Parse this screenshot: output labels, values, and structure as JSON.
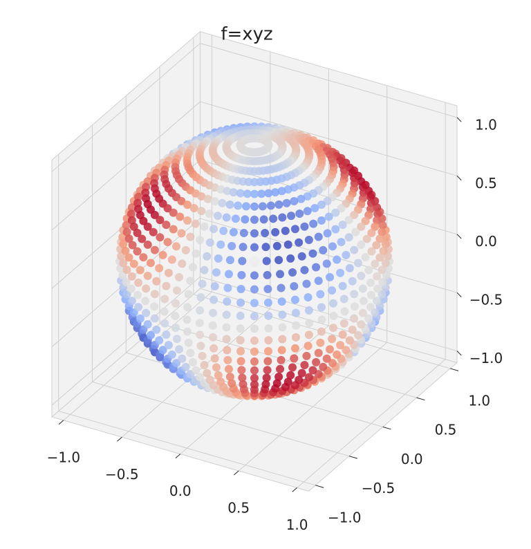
{
  "chart_data": {
    "type": "scatter3d",
    "title": "f=xyz",
    "lat": [
      -84,
      -78,
      -72,
      -66,
      -60,
      -54,
      -48,
      -42,
      -36,
      -30,
      -24,
      -18,
      -12,
      -6,
      0,
      6,
      12,
      18,
      24,
      30,
      36,
      42,
      48,
      54,
      60,
      66,
      72,
      78,
      84
    ],
    "lon": [
      0,
      6,
      12,
      18,
      24,
      30,
      36,
      42,
      48,
      54,
      60,
      66,
      72,
      78,
      84,
      90,
      96,
      102,
      108,
      114,
      120,
      126,
      132,
      138,
      144,
      150,
      156,
      162,
      168,
      174,
      180,
      186,
      192,
      198,
      204,
      210,
      216,
      222,
      228,
      234,
      240,
      246,
      252,
      258,
      264,
      270,
      276,
      282,
      288,
      294,
      300,
      306,
      312,
      318,
      324,
      330,
      336,
      342,
      348,
      354
    ],
    "cmap": "coolwarm",
    "xlim": [
      -1.1,
      1.1
    ],
    "ylim": [
      -1.1,
      1.1
    ],
    "zlim": [
      -1.1,
      1.1
    ],
    "xticks": [
      {
        "value": -1,
        "label": "−1.0"
      },
      {
        "value": -0.5,
        "label": "−0.5"
      },
      {
        "value": 0,
        "label": "0.0"
      },
      0.5,
      {
        "value": 1,
        "label": "1.0"
      }
    ],
    "yticks": [
      {
        "value": -1,
        "label": "−1.0"
      },
      {
        "value": -0.5,
        "label": "−0.5"
      },
      {
        "value": 0,
        "label": "0.0"
      },
      0.5,
      {
        "value": 1,
        "label": "1.0"
      }
    ],
    "zticks": [
      {
        "value": -1,
        "label": "−1.0"
      },
      {
        "value": -0.5,
        "label": "−0.5"
      },
      {
        "value": 0,
        "label": "0.0"
      },
      0.5,
      {
        "value": 1,
        "label": "1.0"
      }
    ],
    "grid": true
  }
}
